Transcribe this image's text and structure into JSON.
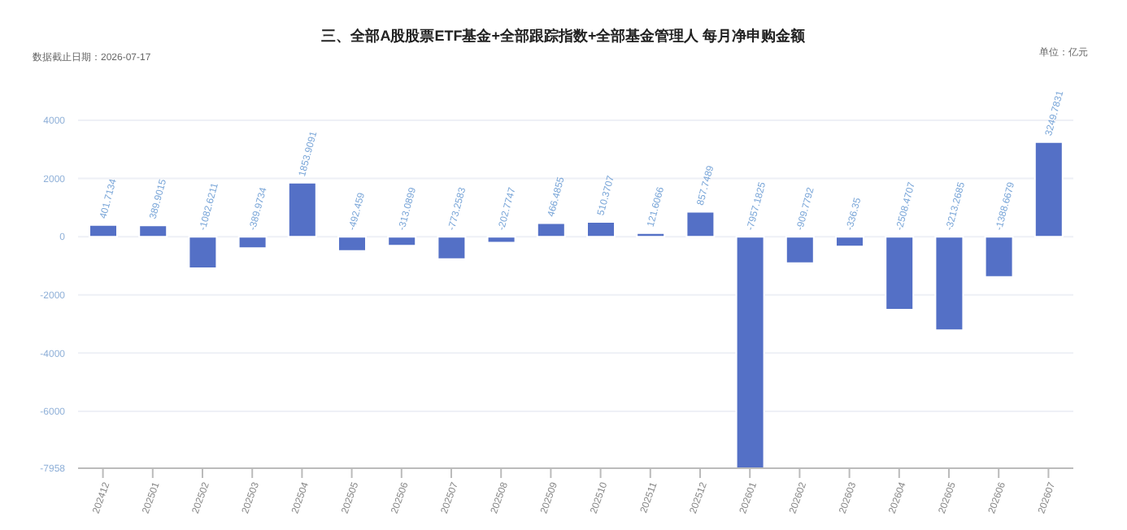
{
  "chart_data": {
    "type": "bar",
    "title": "三、全部A股股票ETF基金+全部跟踪指数+全部基金管理人 每月净申购金额",
    "subtitle": "数据截止日期：2026-07-17",
    "annotations": [
      "单位：亿元"
    ],
    "categories": [
      "202412",
      "202501",
      "202502",
      "202503",
      "202504",
      "202505",
      "202506",
      "202507",
      "202508",
      "202509",
      "202510",
      "202511",
      "202512",
      "202601",
      "202602",
      "202603",
      "202604",
      "202605",
      "202606",
      "202607"
    ],
    "values": [
      401.7134,
      389.9015,
      -1082.6211,
      -389.9734,
      1853.9091,
      -492.459,
      -313.0899,
      -773.2583,
      -202.7747,
      466.4855,
      510.3707,
      121.6066,
      857.7489,
      -7957.1825,
      -909.7792,
      -336.35,
      -2508.4707,
      -3213.2685,
      -1388.6679,
      3249.7831
    ],
    "color": "#5470c6",
    "ylim": [
      -7958,
      4000
    ],
    "yticks": [
      -7958,
      -6000,
      -4000,
      -2000,
      0,
      2000,
      4000
    ],
    "grid": "y",
    "data_labels": true,
    "legend": false
  }
}
